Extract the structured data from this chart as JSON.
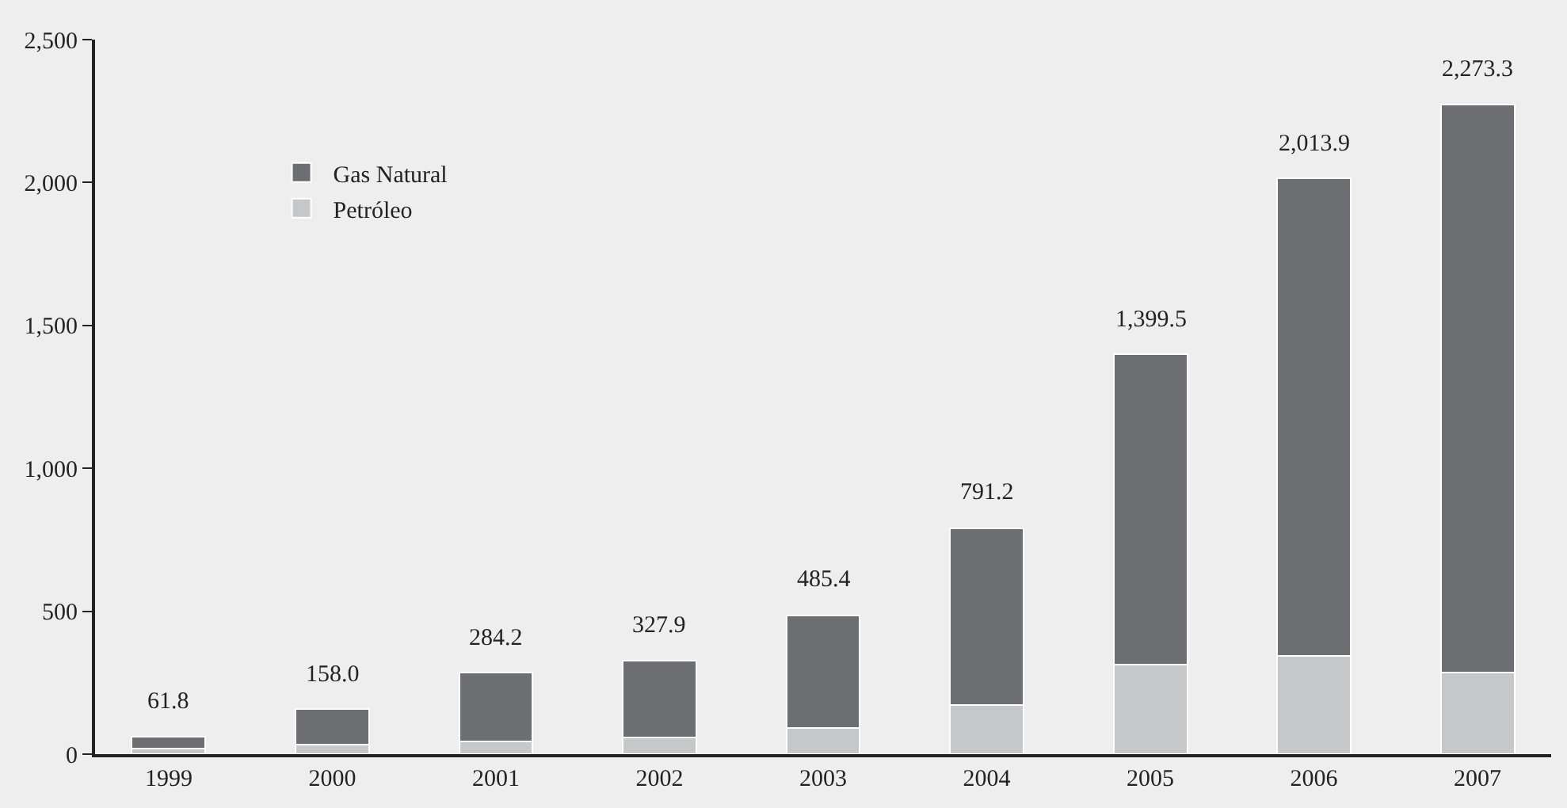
{
  "chart_data": {
    "type": "bar",
    "stacked": true,
    "categories": [
      "1999",
      "2000",
      "2001",
      "2002",
      "2003",
      "2004",
      "2005",
      "2006",
      "2007"
    ],
    "series": [
      {
        "name": "Petróleo",
        "color": "#c6c7c8",
        "values": [
          20,
          34,
          45,
          59,
          91,
          172,
          314,
          344,
          285
        ]
      },
      {
        "name": "Gas Natural",
        "color": "#6d6e71",
        "values": [
          41.8,
          124.0,
          239.2,
          268.9,
          394.4,
          619.2,
          1085.5,
          1669.9,
          1988.3
        ]
      }
    ],
    "totals": [
      "61.8",
      "158.0",
      "284.2",
      "327.9",
      "485.4",
      "791.2",
      "1,399.5",
      "2,013.9",
      "2,273.3"
    ],
    "ylim": [
      0,
      2500
    ],
    "yticks": [
      {
        "value": 0,
        "label": "0"
      },
      {
        "value": 500,
        "label": "500"
      },
      {
        "value": 1000,
        "label": "1,000"
      },
      {
        "value": 1500,
        "label": "1,500"
      },
      {
        "value": 2000,
        "label": "2,000"
      },
      {
        "value": 2500,
        "label": "2,500"
      }
    ],
    "grid": false,
    "legend": "top left"
  }
}
